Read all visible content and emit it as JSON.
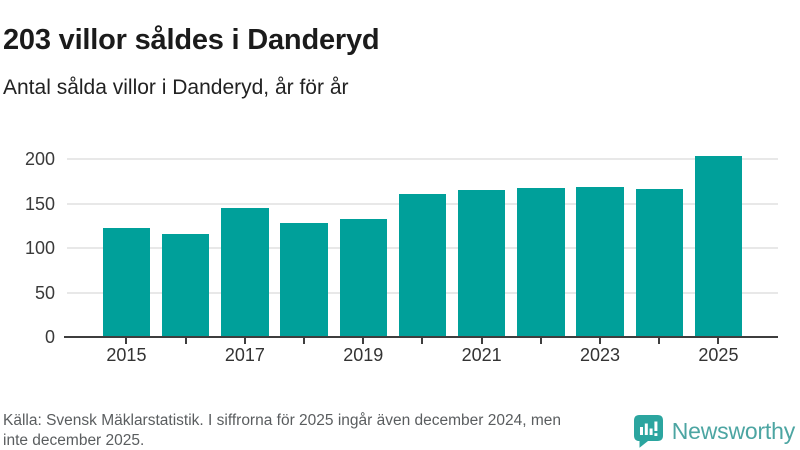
{
  "title": "203 villor såldes i Danderyd",
  "subtitle": "Antal sålda villor i Danderyd, år för år",
  "chart_data": {
    "type": "bar",
    "categories": [
      "2015",
      "2016",
      "2017",
      "2018",
      "2019",
      "2020",
      "2021",
      "2022",
      "2023",
      "2024",
      "2025"
    ],
    "values": [
      122,
      116,
      145,
      128,
      133,
      161,
      165,
      167,
      169,
      166,
      203
    ],
    "title": "203 villor såldes i Danderyd",
    "subtitle": "Antal sålda villor i Danderyd, år för år",
    "xlabel": "",
    "ylabel": "",
    "ylim": [
      0,
      200
    ],
    "yticks": [
      0,
      50,
      100,
      150,
      200
    ],
    "x_tick_labels_shown": [
      "2015",
      "2017",
      "2019",
      "2021",
      "2023",
      "2025"
    ],
    "bar_color": "#00A09A",
    "grid": true,
    "legend": "none"
  },
  "footer": {
    "line1": "Källa: Svensk Mäklarstatistik. I siffrorna för 2025 ingår även december 2024, men",
    "line2": "inte december 2025."
  },
  "branding": {
    "name": "Newsworthy",
    "icon": "speech-bubble-bar-chart",
    "brand_color": "#2BA59F",
    "wordmark_color": "#4CA5A2"
  },
  "colors": {
    "bar": "#00A09A",
    "axis": "#3E3E3E",
    "gridline": "#E8E8E8",
    "title_text": "#1B1B1B",
    "subtitle_text": "#222222",
    "footer_text": "#5A5D5F"
  }
}
